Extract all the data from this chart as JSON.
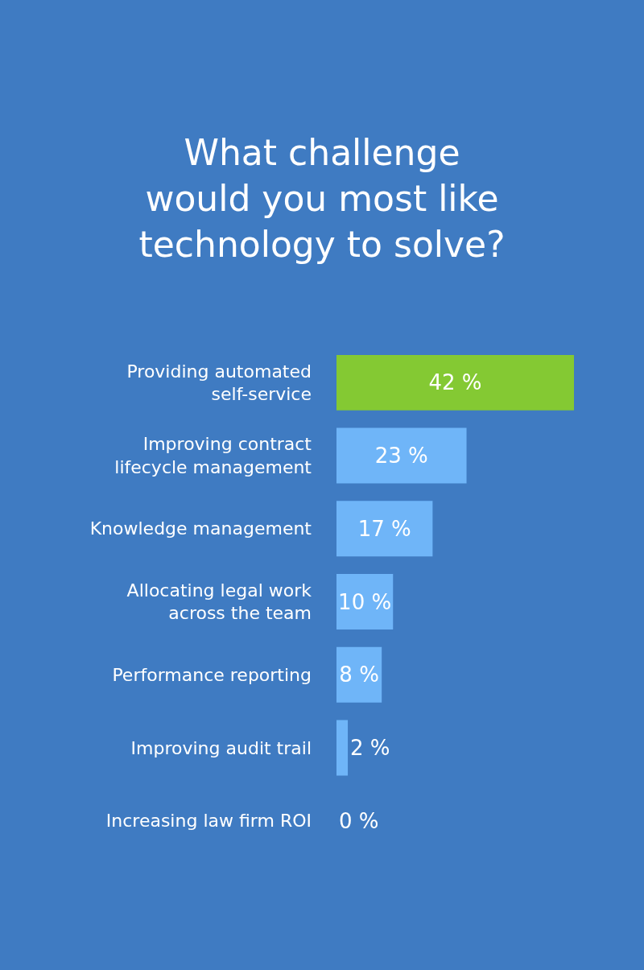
{
  "chart_data": {
    "type": "bar",
    "orientation": "horizontal",
    "title": "What challenge\nwould you most like\ntechnology to solve?",
    "categories": [
      "Providing automated\nself-service",
      "Improving contract\nlifecycle management",
      "Knowledge management",
      "Allocating legal work\nacross the team",
      "Performance reporting",
      "Improving audit trail",
      "Increasing law firm ROI"
    ],
    "values": [
      42,
      23,
      17,
      10,
      8,
      2,
      0
    ],
    "colors": [
      "#84c933",
      "#6fb5f8",
      "#6fb5f8",
      "#6fb5f8",
      "#6fb5f8",
      "#6fb5f8",
      "#6fb5f8"
    ],
    "value_labels": [
      "42 %",
      "23 %",
      "17 %",
      "10 %",
      "8 %",
      "2 %",
      "0 %"
    ]
  }
}
